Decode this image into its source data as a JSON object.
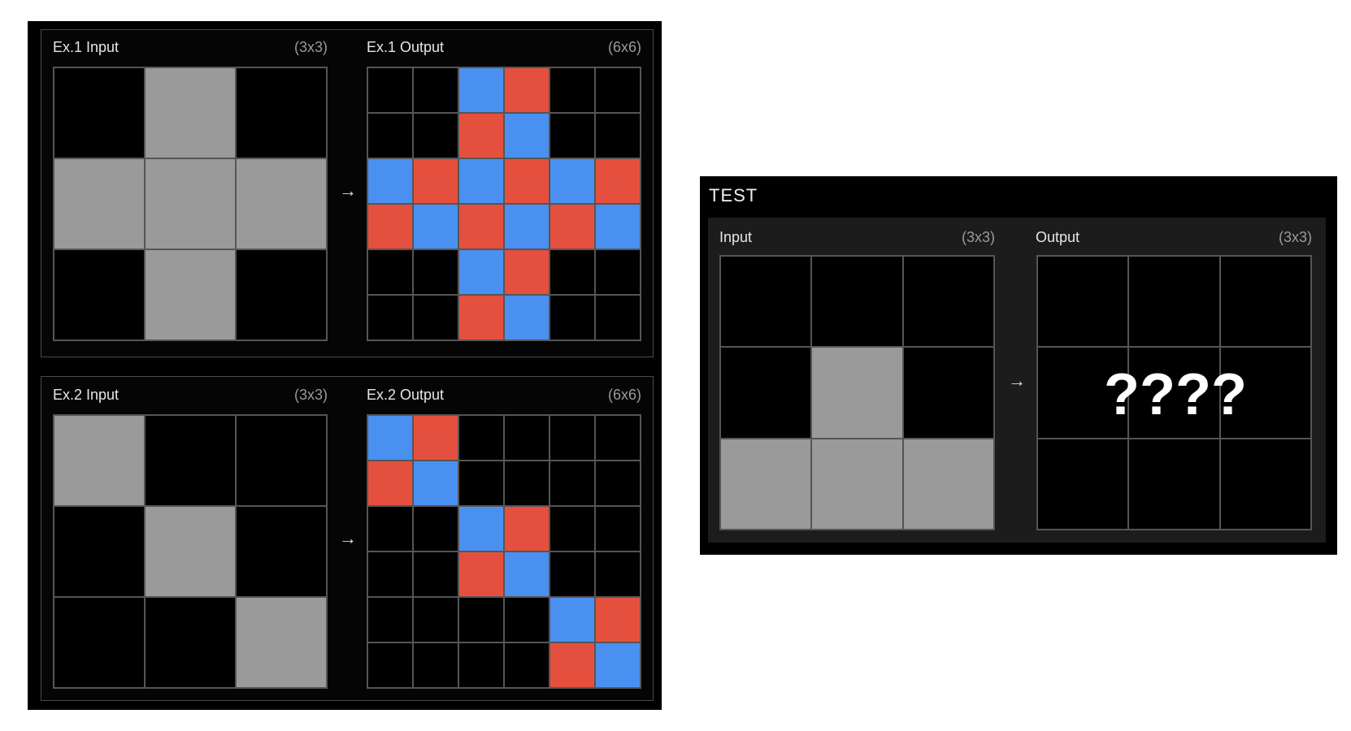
{
  "examples": [
    {
      "input_label": "Ex.1 Input",
      "input_dim": "(3x3)",
      "output_label": "Ex.1 Output",
      "output_dim": "(6x6)",
      "arrow": "→",
      "input_grid": [
        [
          "0",
          "5",
          "0"
        ],
        [
          "5",
          "5",
          "5"
        ],
        [
          "0",
          "5",
          "0"
        ]
      ],
      "output_grid": [
        [
          "0",
          "0",
          "B",
          "R",
          "0",
          "0"
        ],
        [
          "0",
          "0",
          "R",
          "B",
          "0",
          "0"
        ],
        [
          "B",
          "R",
          "B",
          "R",
          "B",
          "R"
        ],
        [
          "R",
          "B",
          "R",
          "B",
          "R",
          "B"
        ],
        [
          "0",
          "0",
          "B",
          "R",
          "0",
          "0"
        ],
        [
          "0",
          "0",
          "R",
          "B",
          "0",
          "0"
        ]
      ]
    },
    {
      "input_label": "Ex.2 Input",
      "input_dim": "(3x3)",
      "output_label": "Ex.2 Output",
      "output_dim": "(6x6)",
      "arrow": "→",
      "input_grid": [
        [
          "5",
          "0",
          "0"
        ],
        [
          "0",
          "5",
          "0"
        ],
        [
          "0",
          "0",
          "5"
        ]
      ],
      "output_grid": [
        [
          "B",
          "R",
          "0",
          "0",
          "0",
          "0"
        ],
        [
          "R",
          "B",
          "0",
          "0",
          "0",
          "0"
        ],
        [
          "0",
          "0",
          "B",
          "R",
          "0",
          "0"
        ],
        [
          "0",
          "0",
          "R",
          "B",
          "0",
          "0"
        ],
        [
          "0",
          "0",
          "0",
          "0",
          "B",
          "R"
        ],
        [
          "0",
          "0",
          "0",
          "0",
          "R",
          "B"
        ]
      ]
    }
  ],
  "test": {
    "title": "TEST",
    "input_label": "Input",
    "input_dim": "(3x3)",
    "output_label": "Output",
    "output_dim": "(3x3)",
    "arrow": "→",
    "unknown_text": "????",
    "input_grid": [
      [
        "0",
        "0",
        "0"
      ],
      [
        "0",
        "5",
        "0"
      ],
      [
        "5",
        "5",
        "5"
      ]
    ],
    "output_grid": [
      [
        "0",
        "0",
        "0"
      ],
      [
        "0",
        "0",
        "0"
      ],
      [
        "0",
        "0",
        "0"
      ]
    ]
  },
  "colors": {
    "black": "#000000",
    "gray": "#9a9a9a",
    "blue": "#4a90f0",
    "red": "#e5503e"
  }
}
